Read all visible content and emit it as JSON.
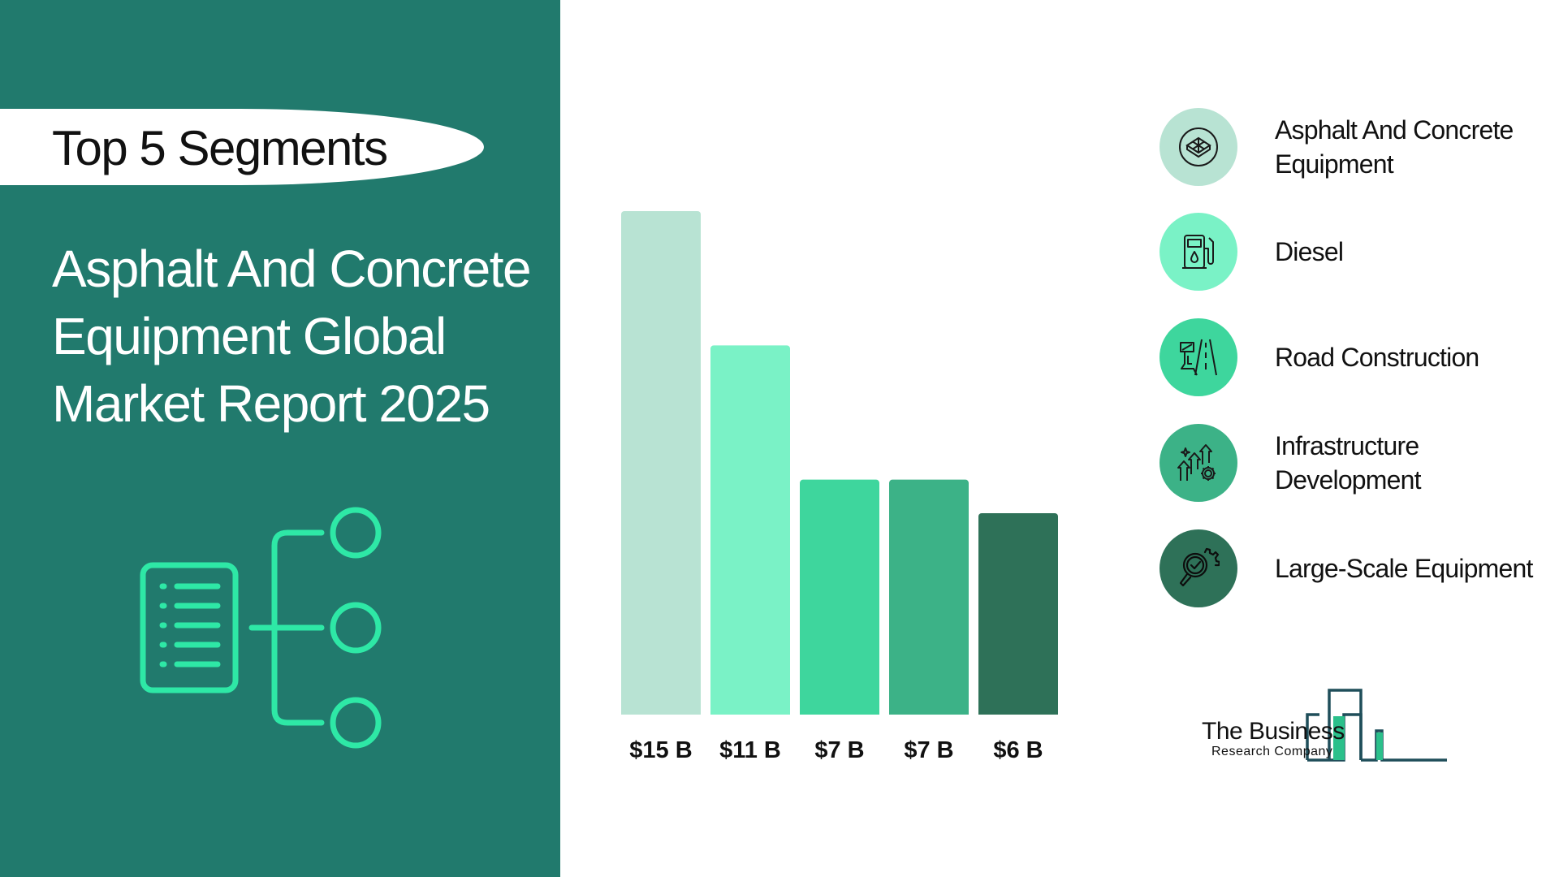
{
  "header": {
    "pill_text": "Top 5 Segments",
    "report_title": "Asphalt And Concrete Equipment Global Market Report 2025"
  },
  "chart_data": {
    "type": "bar",
    "categories": [
      "Asphalt And Concrete Equipment",
      "Diesel",
      "Road Construction",
      "Infrastructure Development",
      "Large-Scale Equipment"
    ],
    "values": [
      15,
      11,
      7,
      7,
      6
    ],
    "value_labels": [
      "$15 B",
      "$11 B",
      "$7 B",
      "$7 B",
      "$6 B"
    ],
    "unit": "$ B",
    "ylim": [
      0,
      15
    ],
    "grid": false,
    "legend_position": "right",
    "colors": [
      "#b8e3d3",
      "#7af2c6",
      "#3ed69d",
      "#3cb287",
      "#2e7158"
    ]
  },
  "legend": [
    {
      "label": "Asphalt And Concrete Equipment",
      "icon": "concrete-block-icon",
      "circle_color": "#b8e3d3"
    },
    {
      "label": "Diesel",
      "icon": "fuel-pump-icon",
      "circle_color": "#7af2c6"
    },
    {
      "label": "Road Construction",
      "icon": "road-icon",
      "circle_color": "#3ed69d"
    },
    {
      "label": "Infrastructure Development",
      "icon": "growth-gear-icon",
      "circle_color": "#3cb287"
    },
    {
      "label": "Large-Scale Equipment",
      "icon": "magnifier-gear-icon",
      "circle_color": "#2e7158"
    }
  ],
  "logo": {
    "line1": "The Business",
    "line2": "Research Company"
  }
}
